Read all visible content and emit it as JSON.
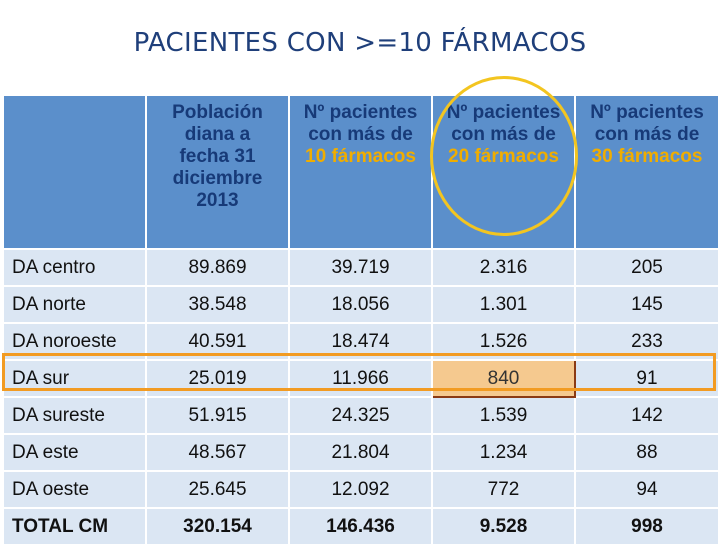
{
  "title": "PACIENTES CON >=10 FÁRMACOS",
  "colors": {
    "header_bg": "#5b8fcb",
    "header_text": "#173a78",
    "highlight_text": "#f0ad00",
    "cell_bg": "#dbe6f3",
    "row_box": "#f29b22",
    "circle": "#f3c520",
    "cell_highlight": "#f5c98f"
  },
  "headers": {
    "col1": [
      "Población",
      "diana a",
      "fecha 31",
      "diciembre",
      "2013"
    ],
    "col2": {
      "lines": [
        "Nº pacientes",
        "con más de"
      ],
      "highlight": "10 fármacos"
    },
    "col3": {
      "lines": [
        "Nº pacientes",
        "con más de"
      ],
      "highlight": "20 fármacos"
    },
    "col4": {
      "lines": [
        "Nº pacientes",
        "con más de"
      ],
      "highlight": "30 fármacos"
    }
  },
  "rows": [
    {
      "name": "DA centro",
      "v": [
        "89.869",
        "39.719",
        "2.316",
        "205"
      ]
    },
    {
      "name": "DA norte",
      "v": [
        "38.548",
        "18.056",
        "1.301",
        "145"
      ]
    },
    {
      "name": "DA noroeste",
      "v": [
        "40.591",
        "18.474",
        "1.526",
        "233"
      ]
    },
    {
      "name": "DA sur",
      "v": [
        "25.019",
        "11.966",
        "840",
        "91"
      ]
    },
    {
      "name": "DA sureste",
      "v": [
        "51.915",
        "24.325",
        "1.539",
        "142"
      ]
    },
    {
      "name": "DA este",
      "v": [
        "48.567",
        "21.804",
        "1.234",
        "88"
      ]
    },
    {
      "name": "DA oeste",
      "v": [
        "25.645",
        "12.092",
        "772",
        "94"
      ]
    }
  ],
  "total": {
    "name": "TOTAL CM",
    "v": [
      "320.154",
      "146.436",
      "9.528",
      "998"
    ]
  }
}
